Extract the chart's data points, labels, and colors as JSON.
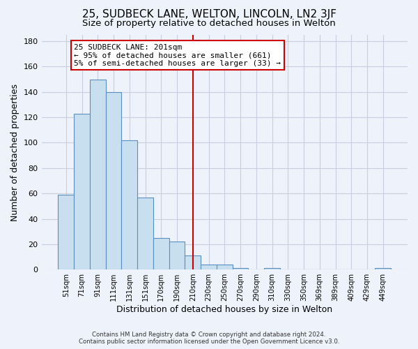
{
  "title": "25, SUDBECK LANE, WELTON, LINCOLN, LN2 3JF",
  "subtitle": "Size of property relative to detached houses in Welton",
  "xlabel": "Distribution of detached houses by size in Welton",
  "ylabel": "Number of detached properties",
  "bar_labels": [
    "51sqm",
    "71sqm",
    "91sqm",
    "111sqm",
    "131sqm",
    "151sqm",
    "170sqm",
    "190sqm",
    "210sqm",
    "230sqm",
    "250sqm",
    "270sqm",
    "290sqm",
    "310sqm",
    "330sqm",
    "350sqm",
    "369sqm",
    "389sqm",
    "409sqm",
    "429sqm",
    "449sqm"
  ],
  "bar_heights": [
    59,
    123,
    150,
    140,
    102,
    57,
    25,
    22,
    11,
    4,
    4,
    1,
    0,
    1,
    0,
    0,
    0,
    0,
    0,
    0,
    1
  ],
  "bar_color": "#c8dff0",
  "bar_edge_color": "#5a8fc0",
  "vline_x": 8,
  "vline_color": "#cc0000",
  "annotation_text": "25 SUDBECK LANE: 201sqm\n← 95% of detached houses are smaller (661)\n5% of semi-detached houses are larger (33) →",
  "annotation_box_color": "#ffffff",
  "annotation_box_edge": "#cc0000",
  "ylim": [
    0,
    185
  ],
  "yticks": [
    0,
    20,
    40,
    60,
    80,
    100,
    120,
    140,
    160,
    180
  ],
  "footer1": "Contains HM Land Registry data © Crown copyright and database right 2024.",
  "footer2": "Contains public sector information licensed under the Open Government Licence v3.0.",
  "title_fontsize": 11,
  "subtitle_fontsize": 9.5,
  "background_color": "#eef2fa",
  "grid_color": "#c8cfe0"
}
